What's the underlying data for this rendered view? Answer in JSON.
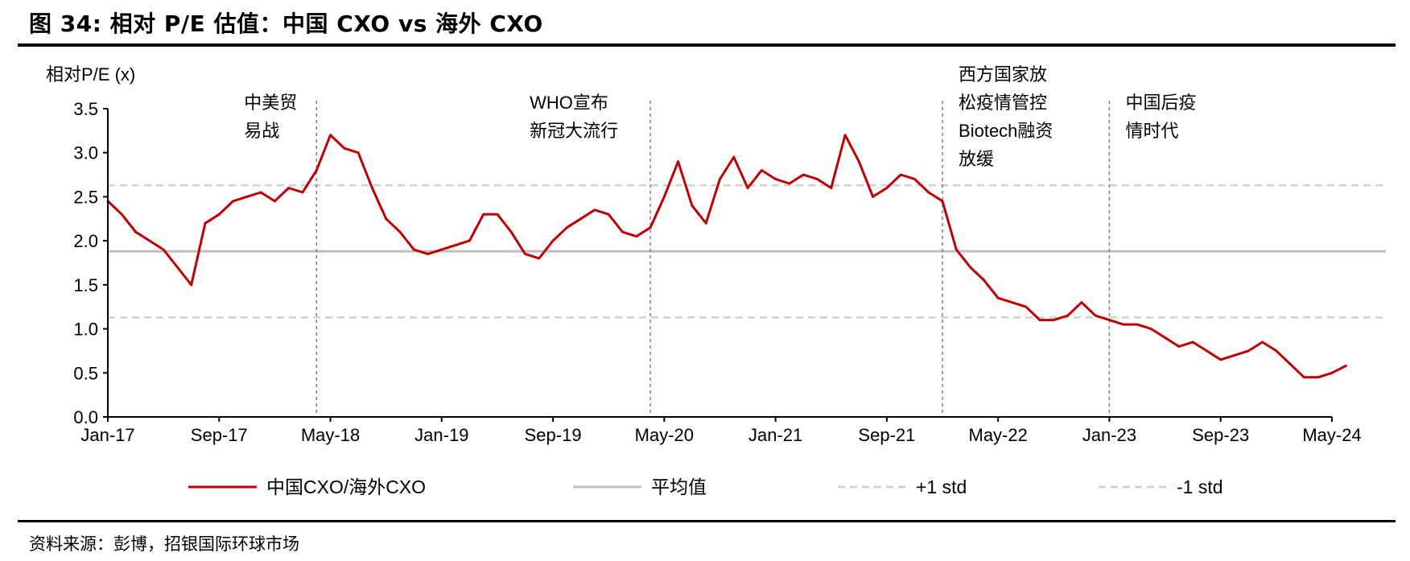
{
  "figure": {
    "title": "图 34: 相对 P/E 估值：中国 CXO vs 海外 CXO",
    "source": "资料来源：彭博，招银国际环球市场"
  },
  "colors": {
    "series": "#c00000",
    "mean": "#bfbfbf",
    "std": "#d0d0d0",
    "event": "#808080",
    "axis": "#000000"
  },
  "chart_data": {
    "type": "line",
    "ylabel": "相对P/E (x)",
    "ylim": [
      0,
      3.5
    ],
    "yticks": [
      "0.0",
      "0.5",
      "1.0",
      "1.5",
      "2.0",
      "2.5",
      "3.0",
      "3.5"
    ],
    "xlim": [
      "2017-01",
      "2024-05"
    ],
    "xticks": [
      "Jan-17",
      "Sep-17",
      "May-18",
      "Jan-19",
      "Sep-19",
      "May-20",
      "Jan-21",
      "Sep-21",
      "May-22",
      "Jan-23",
      "Sep-23",
      "May-24"
    ],
    "grid": false,
    "legend_position": "bottom",
    "series": [
      {
        "name": "中国CXO/海外CXO",
        "color": "#c00000",
        "style": "solid",
        "x": [
          "2017-01",
          "2017-02",
          "2017-03",
          "2017-04",
          "2017-05",
          "2017-06",
          "2017-07",
          "2017-08",
          "2017-09",
          "2017-10",
          "2017-11",
          "2017-12",
          "2018-01",
          "2018-02",
          "2018-03",
          "2018-04",
          "2018-05",
          "2018-06",
          "2018-07",
          "2018-08",
          "2018-09",
          "2018-10",
          "2018-11",
          "2018-12",
          "2019-01",
          "2019-02",
          "2019-03",
          "2019-04",
          "2019-05",
          "2019-06",
          "2019-07",
          "2019-08",
          "2019-09",
          "2019-10",
          "2019-11",
          "2019-12",
          "2020-01",
          "2020-02",
          "2020-03",
          "2020-04",
          "2020-05",
          "2020-06",
          "2020-07",
          "2020-08",
          "2020-09",
          "2020-10",
          "2020-11",
          "2020-12",
          "2021-01",
          "2021-02",
          "2021-03",
          "2021-04",
          "2021-05",
          "2021-06",
          "2021-07",
          "2021-08",
          "2021-09",
          "2021-10",
          "2021-11",
          "2021-12",
          "2022-01",
          "2022-02",
          "2022-03",
          "2022-04",
          "2022-05",
          "2022-06",
          "2022-07",
          "2022-08",
          "2022-09",
          "2022-10",
          "2022-11",
          "2022-12",
          "2023-01",
          "2023-02",
          "2023-03",
          "2023-04",
          "2023-05",
          "2023-06",
          "2023-07",
          "2023-08",
          "2023-09",
          "2023-10",
          "2023-11",
          "2023-12",
          "2024-01",
          "2024-02",
          "2024-03",
          "2024-04",
          "2024-05",
          "2024-06"
        ],
        "values": [
          2.45,
          2.3,
          2.1,
          2.0,
          1.9,
          1.7,
          1.5,
          2.2,
          2.3,
          2.45,
          2.5,
          2.55,
          2.45,
          2.6,
          2.55,
          2.8,
          3.2,
          3.05,
          3.0,
          2.6,
          2.25,
          2.1,
          1.9,
          1.85,
          1.9,
          1.95,
          2.0,
          2.3,
          2.3,
          2.1,
          1.85,
          1.8,
          2.0,
          2.15,
          2.25,
          2.35,
          2.3,
          2.1,
          2.05,
          2.15,
          2.5,
          2.9,
          2.4,
          2.2,
          2.7,
          2.95,
          2.6,
          2.8,
          2.7,
          2.65,
          2.75,
          2.7,
          2.6,
          3.2,
          2.9,
          2.5,
          2.6,
          2.75,
          2.7,
          2.55,
          2.45,
          1.9,
          1.7,
          1.55,
          1.35,
          1.3,
          1.25,
          1.1,
          1.1,
          1.15,
          1.3,
          1.15,
          1.1,
          1.05,
          1.05,
          1.0,
          0.9,
          0.8,
          0.85,
          0.75,
          0.65,
          0.7,
          0.75,
          0.85,
          0.75,
          0.6,
          0.45,
          0.45,
          0.5,
          0.58
        ]
      },
      {
        "name": "平均值",
        "color": "#bfbfbf",
        "style": "solid",
        "value": 1.88
      },
      {
        "name": "+1 std",
        "color": "#d0d0d0",
        "style": "dashed",
        "value": 2.63
      },
      {
        "name": "-1 std",
        "color": "#d0d0d0",
        "style": "dashed",
        "value": 1.13
      }
    ],
    "annotations": [
      {
        "date": "2018-04",
        "lines": [
          "中美贸",
          "易战"
        ]
      },
      {
        "date": "2020-04",
        "lines": [
          "WHO宣布",
          "新冠大流行"
        ]
      },
      {
        "date": "2022-01",
        "lines": [
          "西方国家放",
          "松疫情管控",
          "Biotech融资",
          "放缓"
        ]
      },
      {
        "date": "2023-01",
        "lines": [
          "中国后疫",
          "情时代"
        ]
      }
    ]
  }
}
